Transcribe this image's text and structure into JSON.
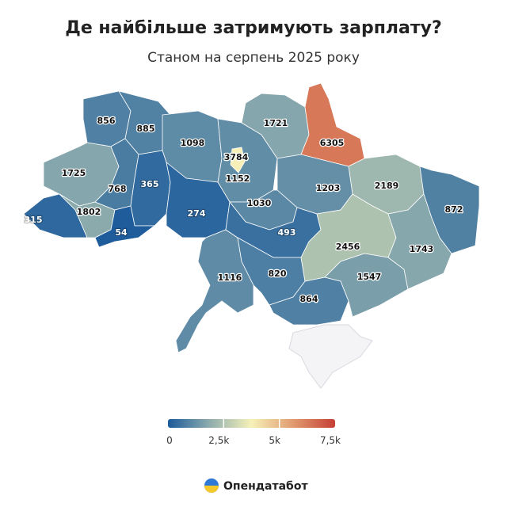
{
  "chart_data": {
    "type": "choropleth",
    "title": "Де найбільше затримують зарплату?",
    "subtitle": "Станом на серпень 2025 року",
    "values": [
      856,
      885,
      1098,
      1152,
      3784,
      1721,
      6305,
      2189,
      1203,
      1030,
      1725,
      768,
      365,
      274,
      315,
      1802,
      54,
      1116,
      493,
      820,
      864,
      2456,
      1547,
      1743,
      872
    ],
    "clim": [
      0,
      7500
    ],
    "colors": [
      "#1b5a9b",
      "#8eadad",
      "#f6f1b8",
      "#e09a6e",
      "#c63f35"
    ],
    "legend_ticks": [
      0,
      {
        "value": 2500,
        "label": "2,5k"
      },
      {
        "value": 5000,
        "label": "5k"
      },
      {
        "value": 7500,
        "label": "7,5k"
      }
    ]
  },
  "footer": {
    "brand": "Опендатабот"
  }
}
